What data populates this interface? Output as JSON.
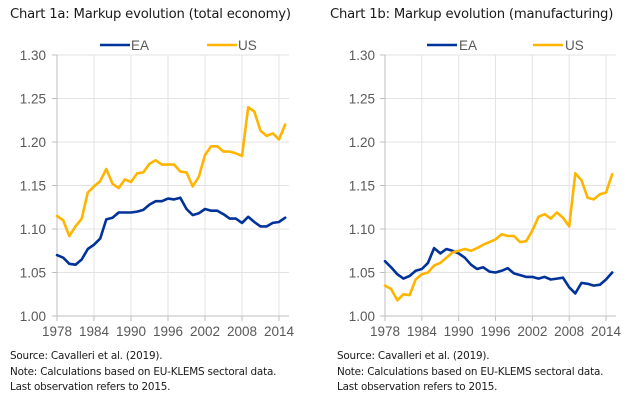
{
  "chart_data": [
    {
      "type": "line",
      "title": "Chart 1a: Markup evolution (total economy)",
      "xlabel": "",
      "ylabel": "",
      "x": [
        1978,
        1979,
        1980,
        1981,
        1982,
        1983,
        1984,
        1985,
        1986,
        1987,
        1988,
        1989,
        1990,
        1991,
        1992,
        1993,
        1994,
        1995,
        1996,
        1997,
        1998,
        1999,
        2000,
        2001,
        2002,
        2003,
        2004,
        2005,
        2006,
        2007,
        2008,
        2009,
        2010,
        2011,
        2012,
        2013,
        2014,
        2015
      ],
      "xticks": [
        "1978",
        "1984",
        "1990",
        "1996",
        "2002",
        "2008",
        "2014"
      ],
      "xtick_values": [
        1978,
        1984,
        1990,
        1996,
        2002,
        2008,
        2014
      ],
      "yticks": [
        "1.00",
        "1.05",
        "1.10",
        "1.15",
        "1.20",
        "1.25",
        "1.30"
      ],
      "ylim": [
        1.0,
        1.3
      ],
      "xlim": [
        1978,
        2015.3
      ],
      "grid": true,
      "legend_position": "top-center",
      "series": [
        {
          "name": "EA",
          "color": "#003299",
          "values": [
            1.07,
            1.067,
            1.06,
            1.059,
            1.065,
            1.077,
            1.082,
            1.089,
            1.111,
            1.113,
            1.119,
            1.119,
            1.119,
            1.12,
            1.122,
            1.128,
            1.132,
            1.132,
            1.135,
            1.134,
            1.136,
            1.123,
            1.116,
            1.118,
            1.123,
            1.121,
            1.121,
            1.117,
            1.112,
            1.112,
            1.107,
            1.114,
            1.108,
            1.103,
            1.103,
            1.107,
            1.108,
            1.113
          ]
        },
        {
          "name": "US",
          "color": "#FFB400",
          "values": [
            1.115,
            1.11,
            1.092,
            1.103,
            1.112,
            1.142,
            1.149,
            1.155,
            1.169,
            1.152,
            1.147,
            1.157,
            1.154,
            1.164,
            1.165,
            1.175,
            1.179,
            1.174,
            1.174,
            1.174,
            1.166,
            1.165,
            1.149,
            1.16,
            1.185,
            1.195,
            1.195,
            1.189,
            1.189,
            1.187,
            1.184,
            1.24,
            1.235,
            1.213,
            1.207,
            1.21,
            1.203,
            1.22
          ]
        }
      ],
      "notes": [
        "Source: Cavalleri et al. (2019).",
        "Note: Calculations based on EU-KLEMS sectoral data.",
        "Last observation refers to 2015."
      ]
    },
    {
      "type": "line",
      "title": "Chart 1b: Markup evolution (manufacturing)",
      "xlabel": "",
      "ylabel": "",
      "x": [
        1978,
        1979,
        1980,
        1981,
        1982,
        1983,
        1984,
        1985,
        1986,
        1987,
        1988,
        1989,
        1990,
        1991,
        1992,
        1993,
        1994,
        1995,
        1996,
        1997,
        1998,
        1999,
        2000,
        2001,
        2002,
        2003,
        2004,
        2005,
        2006,
        2007,
        2008,
        2009,
        2010,
        2011,
        2012,
        2013,
        2014,
        2015
      ],
      "xticks": [
        "1978",
        "1984",
        "1990",
        "1996",
        "2002",
        "2008",
        "2014"
      ],
      "xtick_values": [
        1978,
        1984,
        1990,
        1996,
        2002,
        2008,
        2014
      ],
      "yticks": [
        "1.00",
        "1.05",
        "1.10",
        "1.15",
        "1.20",
        "1.25",
        "1.30"
      ],
      "ylim": [
        1.0,
        1.3
      ],
      "xlim": [
        1978,
        2015.3
      ],
      "grid": true,
      "legend_position": "top-center",
      "series": [
        {
          "name": "EA",
          "color": "#003299",
          "values": [
            1.063,
            1.056,
            1.048,
            1.043,
            1.046,
            1.052,
            1.054,
            1.061,
            1.078,
            1.072,
            1.077,
            1.075,
            1.072,
            1.067,
            1.059,
            1.054,
            1.056,
            1.051,
            1.05,
            1.052,
            1.055,
            1.049,
            1.047,
            1.045,
            1.045,
            1.043,
            1.045,
            1.042,
            1.043,
            1.044,
            1.033,
            1.026,
            1.038,
            1.037,
            1.035,
            1.036,
            1.042,
            1.05
          ]
        },
        {
          "name": "US",
          "color": "#FFB400",
          "values": [
            1.035,
            1.031,
            1.018,
            1.025,
            1.024,
            1.042,
            1.048,
            1.05,
            1.058,
            1.061,
            1.067,
            1.073,
            1.075,
            1.077,
            1.075,
            1.078,
            1.082,
            1.085,
            1.088,
            1.094,
            1.092,
            1.092,
            1.085,
            1.086,
            1.098,
            1.114,
            1.117,
            1.112,
            1.119,
            1.113,
            1.103,
            1.164,
            1.156,
            1.136,
            1.134,
            1.14,
            1.142,
            1.163
          ]
        }
      ],
      "notes": [
        "Source: Cavalleri et al. (2019).",
        "Note: Calculations based on EU-KLEMS sectoral data.",
        "Last observation refers to 2015."
      ]
    }
  ]
}
